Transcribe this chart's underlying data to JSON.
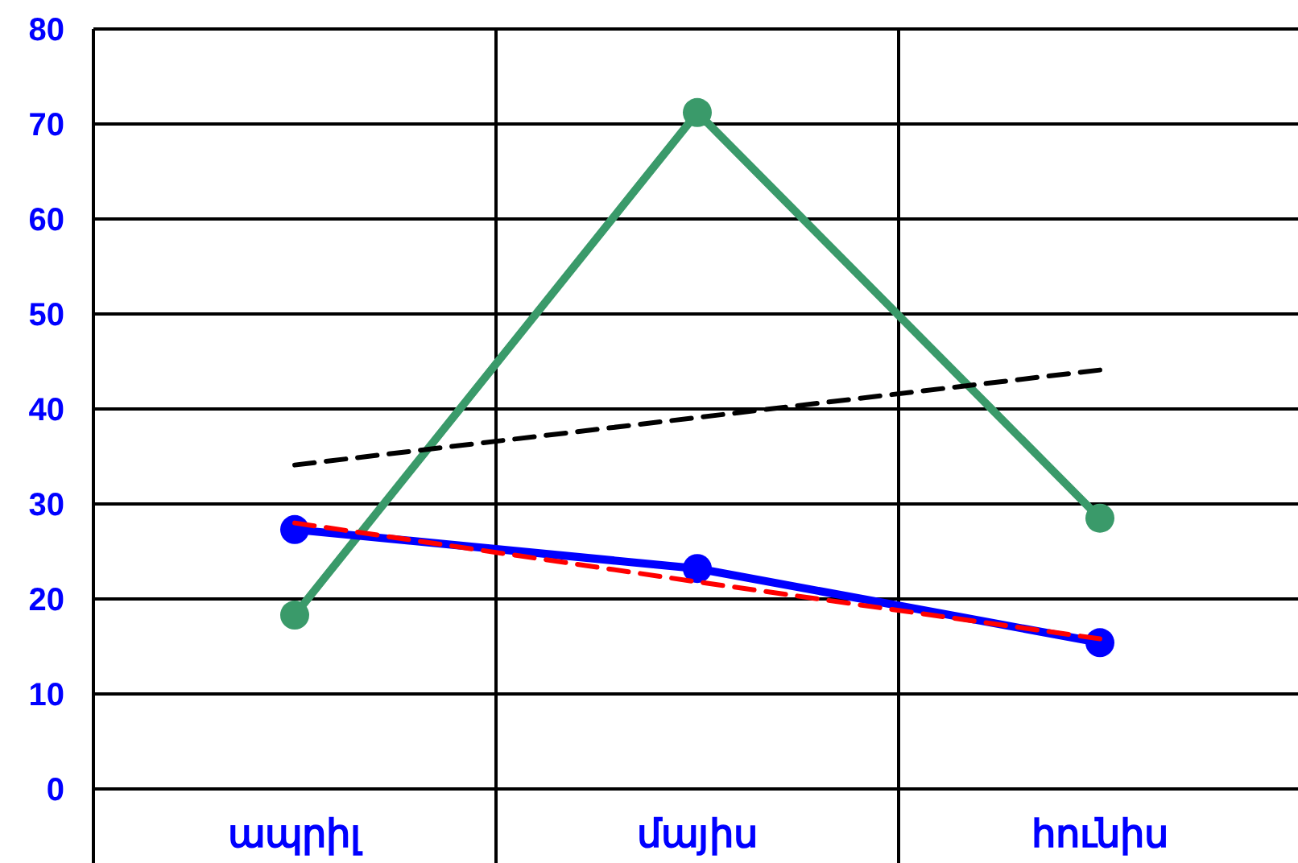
{
  "chart_data": {
    "type": "line",
    "categories": [
      "ապրիլ",
      "մայիս",
      "հունիս"
    ],
    "ylim": [
      0,
      80
    ],
    "yticks": [
      0,
      10,
      20,
      30,
      40,
      50,
      60,
      70,
      80
    ],
    "grid": true,
    "series": [
      {
        "color": "#3a9a6a",
        "values": [
          18.3,
          71.2,
          28.5
        ],
        "marker": "circle",
        "line_style": "solid"
      },
      {
        "color": "#000000",
        "values": [
          34.1,
          39.1,
          44.1
        ],
        "marker": "none",
        "line_style": "dashed"
      },
      {
        "color": "#0000ff",
        "values": [
          27.3,
          23.2,
          15.4
        ],
        "marker": "circle",
        "line_style": "solid"
      },
      {
        "color": "#ff0000",
        "values": [
          28,
          21.8,
          15.8
        ],
        "marker": "none",
        "line_style": "dashed"
      }
    ]
  }
}
